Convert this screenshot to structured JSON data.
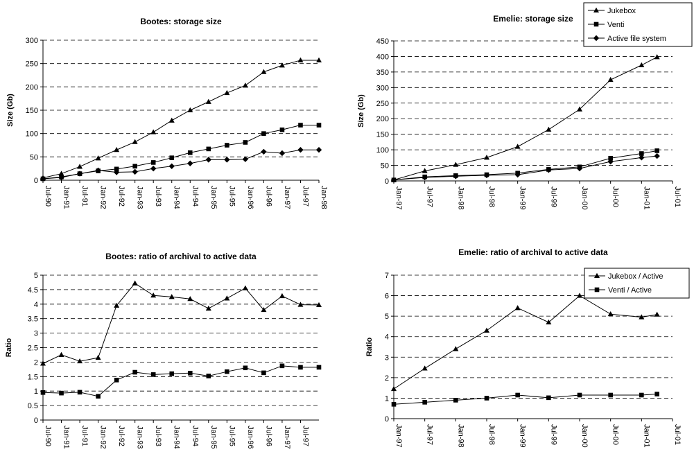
{
  "chart_data": [
    {
      "type": "line",
      "title": "Bootes: storage size",
      "xlabel": "",
      "ylabel": "Size (Gb)",
      "ylim": [
        0,
        300
      ],
      "yticks": [
        0,
        50,
        100,
        150,
        200,
        250,
        300
      ],
      "grid": "horizontal dashed",
      "categories": [
        "Jul-90",
        "Jan-91",
        "Jul-91",
        "Jan-92",
        "Jul-92",
        "Jan-93",
        "Jul-93",
        "Jan-94",
        "Jul-94",
        "Jan-95",
        "Jul-95",
        "Jan-96",
        "Jul-96",
        "Jan-97",
        "Jul-97",
        "Jan-98"
      ],
      "series": [
        {
          "name": "Jukebox",
          "marker": "triangle",
          "values": [
            5,
            14,
            29,
            47,
            65,
            82,
            103,
            128,
            150,
            168,
            187,
            203,
            232,
            246,
            257,
            257
          ]
        },
        {
          "name": "Venti",
          "marker": "square",
          "values": [
            3,
            7,
            14,
            20,
            24,
            30,
            38,
            48,
            59,
            67,
            75,
            81,
            100,
            108,
            118,
            118
          ]
        },
        {
          "name": "Active file system",
          "marker": "diamond",
          "values": [
            3,
            6,
            14,
            21,
            17,
            18,
            25,
            30,
            36,
            44,
            44,
            45,
            61,
            58,
            65,
            65
          ]
        }
      ]
    },
    {
      "type": "line",
      "title": "Emelie: storage size",
      "xlabel": "",
      "ylabel": "Size (Gb)",
      "ylim": [
        0,
        450
      ],
      "yticks": [
        0,
        50,
        100,
        150,
        200,
        250,
        300,
        350,
        400,
        450
      ],
      "grid": "horizontal dashed",
      "x_axis_labels": [
        "Jan-97",
        "Jul-97",
        "Jan-98",
        "Jul-98",
        "Jan-99",
        "Jul-99",
        "Jan-00",
        "Jul-00",
        "Jan-01",
        "Jul-01"
      ],
      "x": [
        "Jan-97",
        "Jul-97",
        "Jan-98",
        "Jul-98",
        "Jan-99",
        "Jul-99",
        "Jan-00",
        "Jul-00",
        "Jan-01",
        "Apr-01"
      ],
      "series": [
        {
          "name": "Jukebox",
          "marker": "triangle",
          "values": [
            3,
            32,
            52,
            75,
            110,
            165,
            230,
            325,
            372,
            398
          ]
        },
        {
          "name": "Venti",
          "marker": "square",
          "values": [
            3,
            13,
            17,
            20,
            25,
            37,
            45,
            73,
            88,
            97
          ]
        },
        {
          "name": "Active file system",
          "marker": "diamond",
          "values": [
            3,
            11,
            15,
            18,
            20,
            35,
            40,
            62,
            75,
            80
          ]
        }
      ],
      "legend": {
        "position": "top-right",
        "entries": [
          {
            "label": "Jukebox",
            "marker": "triangle"
          },
          {
            "label": "Venti",
            "marker": "square"
          },
          {
            "label": "Active file system",
            "marker": "diamond"
          }
        ]
      }
    },
    {
      "type": "line",
      "title": "Bootes: ratio of archival to active data",
      "xlabel": "",
      "ylabel": "Ratio",
      "ylim": [
        0,
        5
      ],
      "yticks": [
        "0",
        "0.5",
        "1",
        "1.5",
        "2",
        "2.5",
        "3",
        "3.5",
        "4",
        "4.5",
        "5"
      ],
      "grid": "horizontal dashed",
      "x_axis_labels": [
        "Jul-90",
        "Jan-91",
        "Jul-91",
        "Jan-92",
        "Jul-92",
        "Jan-93",
        "Jul-93",
        "Jan-94",
        "Jul-94",
        "Jan-95",
        "Jul-95",
        "Jan-96",
        "Jul-96",
        "Jan-97",
        "Jul-97"
      ],
      "categories": [
        "Jul-90",
        "Jan-91",
        "Jul-91",
        "Jan-92",
        "Jul-92",
        "Jan-93",
        "Jul-93",
        "Jan-94",
        "Jul-94",
        "Jan-95",
        "Jul-95",
        "Jan-96",
        "Jul-96",
        "Jan-97",
        "Jul-97",
        "Jan-98"
      ],
      "series": [
        {
          "marker": "triangle",
          "values": [
            1.95,
            2.25,
            2.03,
            2.15,
            3.95,
            4.72,
            4.3,
            4.25,
            4.18,
            3.85,
            4.2,
            4.55,
            3.8,
            4.28,
            3.98,
            3.97
          ]
        },
        {
          "marker": "square",
          "values": [
            0.95,
            0.93,
            0.96,
            0.82,
            1.38,
            1.65,
            1.57,
            1.6,
            1.62,
            1.52,
            1.67,
            1.8,
            1.63,
            1.87,
            1.82,
            1.82
          ]
        }
      ]
    },
    {
      "type": "line",
      "title": "Emelie: ratio of archival to active data",
      "xlabel": "",
      "ylabel": "Ratio",
      "ylim": [
        0,
        7
      ],
      "yticks": [
        0,
        1,
        2,
        3,
        4,
        5,
        6,
        7
      ],
      "grid": "horizontal dashed",
      "x_axis_labels": [
        "Jan-97",
        "Jul-97",
        "Jan-98",
        "Jul-98",
        "Jan-99",
        "Jul-99",
        "Jan-00",
        "Jul-00",
        "Jan-01",
        "Jul-01"
      ],
      "x": [
        "Jan-97",
        "Jul-97",
        "Jan-98",
        "Jul-98",
        "Jan-99",
        "Jul-99",
        "Jan-00",
        "Jul-00",
        "Jan-01",
        "Apr-01"
      ],
      "series": [
        {
          "name": "Jukebox / Active",
          "marker": "triangle",
          "values": [
            1.45,
            2.45,
            3.4,
            4.3,
            5.4,
            4.7,
            6.0,
            5.1,
            4.95,
            5.08
          ]
        },
        {
          "name": "Venti / Active",
          "marker": "square",
          "values": [
            0.7,
            0.8,
            0.9,
            1.0,
            1.15,
            1.02,
            1.15,
            1.15,
            1.15,
            1.2
          ]
        }
      ],
      "legend": {
        "position": "top-right",
        "entries": [
          {
            "label": "Jukebox / Active",
            "marker": "triangle"
          },
          {
            "label": "Venti / Active",
            "marker": "square"
          }
        ]
      }
    }
  ]
}
